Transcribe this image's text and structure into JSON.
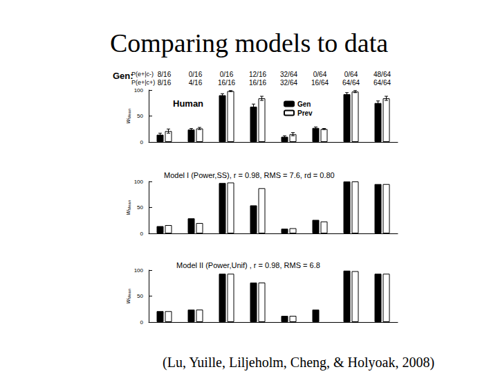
{
  "title": "Comparing models to data",
  "citation": "(Lu, Yuille, Liljeholm, Cheng, & Holyoak, 2008)",
  "header": {
    "label": "Gen:",
    "rows": [
      {
        "label": "P(e+|c-)",
        "values": [
          "8/16",
          "0/16",
          "0/16",
          "12/16",
          "32/64",
          "0/64",
          "0/64",
          "48/64"
        ]
      },
      {
        "label": "P(e+|c+)",
        "values": [
          "8/16",
          "4/16",
          "16/16",
          "16/16",
          "32/64",
          "16/64",
          "64/64",
          "64/64"
        ]
      }
    ]
  },
  "chart_data": [
    {
      "type": "bar",
      "title": "Human",
      "y_label": "w",
      "y_label_sub": "Mean",
      "categories": [
        null,
        null,
        null,
        null,
        null,
        null,
        null,
        null
      ],
      "series": [
        {
          "name": "Gen",
          "color": "#000000",
          "values": [
            14,
            24,
            90,
            68,
            10,
            27,
            92,
            75
          ],
          "errors": [
            3,
            2,
            3,
            5,
            2,
            2,
            3,
            4
          ]
        },
        {
          "name": "Prev",
          "color": "#ffffff",
          "values": [
            21,
            26,
            98,
            84,
            15,
            25,
            97,
            84
          ],
          "errors": [
            4,
            2,
            1,
            4,
            3,
            1,
            2,
            4
          ]
        }
      ],
      "ylim": [
        0,
        100
      ],
      "yticks": [
        0,
        50,
        100
      ],
      "legend": "upper right",
      "tick_labels": "y"
    },
    {
      "type": "bar",
      "title": "Model I (Power,SS), r = 0.98, RMS = 7.6, rd = 0.80",
      "y_label": "w",
      "y_label_sub": "Mean",
      "categories": [
        null,
        null,
        null,
        null,
        null,
        null,
        null,
        null
      ],
      "series": [
        {
          "color": "#000000",
          "values": [
            14,
            29,
            97,
            54,
            9,
            26,
            100,
            95
          ]
        },
        {
          "color": "#ffffff",
          "values": [
            16,
            20,
            98,
            87,
            10,
            23,
            100,
            95
          ]
        }
      ],
      "ylim": [
        0,
        100
      ],
      "yticks": [
        0,
        50,
        100
      ],
      "tick_labels": "y"
    },
    {
      "type": "bar",
      "title": "Model II (Power,Unif) , r = 0.98, RMS = 6.8",
      "y_label": "w",
      "y_label_sub": "Mean",
      "categories": [
        null,
        null,
        null,
        null,
        null,
        null,
        null,
        null
      ],
      "series": [
        {
          "color": "#000000",
          "values": [
            21,
            24,
            93,
            76,
            12,
            24,
            99,
            93
          ]
        },
        {
          "color": "#ffffff",
          "values": [
            21,
            24,
            93,
            76,
            12,
            null,
            98,
            93
          ]
        }
      ],
      "ylim": [
        0,
        100
      ],
      "yticks": [
        0,
        50,
        100
      ],
      "tick_labels": "y"
    }
  ]
}
